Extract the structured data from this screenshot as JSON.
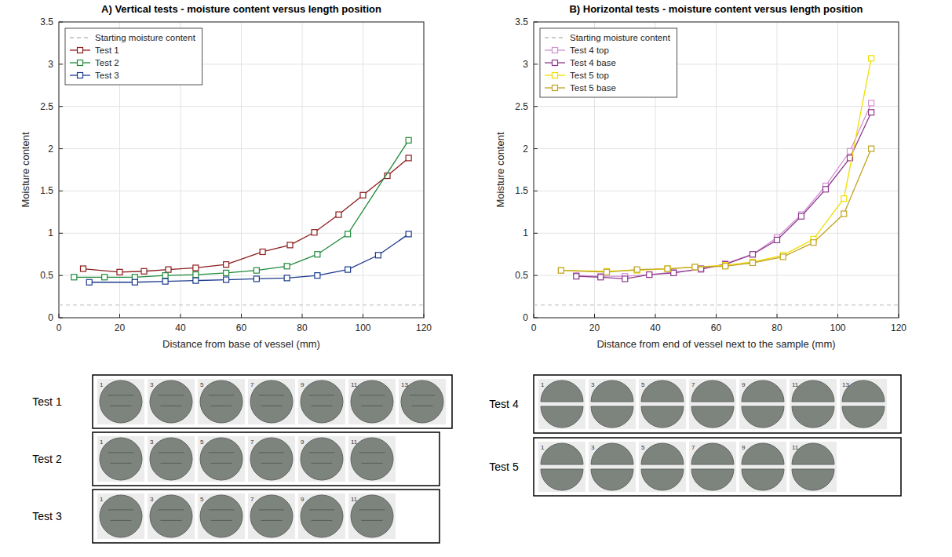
{
  "chart_data": [
    {
      "type": "line",
      "title": "A) Vertical tests - moisture content versus length position",
      "x_label": "Distance from base of vessel (mm)",
      "y_label": "Moisture content",
      "xlim": [
        0,
        120
      ],
      "xticks": [
        0,
        20,
        40,
        60,
        80,
        100,
        120
      ],
      "ylim": [
        0,
        3.5
      ],
      "yticks": [
        0,
        0.5,
        1,
        1.5,
        2,
        2.5,
        3,
        3.5
      ],
      "grid": true,
      "legend": "upper-left",
      "series": [
        {
          "name": "Starting moisture content",
          "color": "#bbbbbb",
          "line_style": "dashed",
          "marker": "none",
          "x": [
            0,
            120
          ],
          "values": [
            0.15,
            0.15
          ]
        },
        {
          "name": "Test 1",
          "color": "#8b1c1c",
          "line_style": "solid",
          "marker": "square",
          "x": [
            8,
            20,
            28,
            36,
            45,
            55,
            67,
            76,
            84,
            92,
            100,
            108,
            115
          ],
          "values": [
            0.58,
            0.54,
            0.55,
            0.57,
            0.59,
            0.63,
            0.78,
            0.86,
            1.01,
            1.22,
            1.45,
            1.68,
            1.89
          ]
        },
        {
          "name": "Test 2",
          "color": "#1f8a3a",
          "line_style": "solid",
          "marker": "square",
          "x": [
            5,
            15,
            25,
            35,
            45,
            55,
            65,
            75,
            85,
            95,
            115
          ],
          "values": [
            0.48,
            0.48,
            0.48,
            0.5,
            0.51,
            0.53,
            0.56,
            0.61,
            0.75,
            0.99,
            2.1
          ]
        },
        {
          "name": "Test 3",
          "color": "#1b3a8c",
          "line_style": "solid",
          "marker": "square",
          "x": [
            10,
            25,
            35,
            45,
            55,
            65,
            75,
            85,
            95,
            105,
            115
          ],
          "values": [
            0.42,
            0.42,
            0.43,
            0.44,
            0.45,
            0.46,
            0.47,
            0.5,
            0.57,
            0.74,
            0.99
          ]
        }
      ]
    },
    {
      "type": "line",
      "title": "B) Horizontal tests - moisture content versus length position",
      "x_label": "Distance from end of vessel next to the sample (mm)",
      "y_label": "Moisture content",
      "xlim": [
        0,
        120
      ],
      "xticks": [
        0,
        20,
        40,
        60,
        80,
        100,
        120
      ],
      "ylim": [
        0,
        3.5
      ],
      "yticks": [
        0,
        0.5,
        1,
        1.5,
        2,
        2.5,
        3,
        3.5
      ],
      "grid": true,
      "legend": "upper-left",
      "series": [
        {
          "name": "Starting moisture content",
          "color": "#bbbbbb",
          "line_style": "dashed",
          "marker": "none",
          "x": [
            0,
            120
          ],
          "values": [
            0.15,
            0.15
          ]
        },
        {
          "name": "Test 4 top",
          "color": "#d48fd4",
          "line_style": "solid",
          "marker": "square",
          "x": [
            14,
            22,
            30,
            38,
            46,
            55,
            63,
            72,
            80,
            88,
            96,
            104,
            111
          ],
          "values": [
            0.5,
            0.49,
            0.49,
            0.51,
            0.54,
            0.57,
            0.64,
            0.75,
            0.95,
            1.22,
            1.56,
            1.97,
            2.54
          ]
        },
        {
          "name": "Test 4 base",
          "color": "#8e3a8e",
          "line_style": "solid",
          "marker": "square",
          "x": [
            14,
            22,
            30,
            38,
            46,
            55,
            63,
            72,
            80,
            88,
            96,
            104,
            111
          ],
          "values": [
            0.49,
            0.48,
            0.46,
            0.51,
            0.53,
            0.58,
            0.63,
            0.75,
            0.92,
            1.2,
            1.52,
            1.89,
            2.43
          ]
        },
        {
          "name": "Test 5 top",
          "color": "#f0df00",
          "line_style": "solid",
          "marker": "square",
          "x": [
            9,
            24,
            34,
            44,
            53,
            63,
            72,
            82,
            92,
            102,
            111
          ],
          "values": [
            0.56,
            0.55,
            0.56,
            0.58,
            0.6,
            0.62,
            0.66,
            0.74,
            0.93,
            1.41,
            3.07
          ]
        },
        {
          "name": "Test 5 base",
          "color": "#bfa424",
          "line_style": "solid",
          "marker": "square",
          "x": [
            9,
            24,
            34,
            44,
            53,
            63,
            72,
            82,
            92,
            102,
            111
          ],
          "values": [
            0.56,
            0.54,
            0.57,
            0.58,
            0.6,
            0.61,
            0.65,
            0.72,
            0.89,
            1.23,
            2.0
          ]
        }
      ]
    }
  ],
  "photo_rows": [
    [
      {
        "label": "Test 1",
        "numbers": [
          1,
          3,
          5,
          7,
          9,
          11,
          13
        ]
      },
      {
        "label": "Test 2",
        "numbers": [
          1,
          3,
          5,
          7,
          9,
          11
        ]
      },
      {
        "label": "Test 3",
        "numbers": [
          1,
          3,
          5,
          7,
          9,
          11
        ]
      }
    ],
    [
      {
        "label": "Test 4",
        "numbers": [
          1,
          3,
          5,
          7,
          9,
          11,
          13
        ]
      },
      {
        "label": "Test 5",
        "numbers": [
          1,
          3,
          5,
          7,
          9,
          11
        ]
      }
    ]
  ]
}
